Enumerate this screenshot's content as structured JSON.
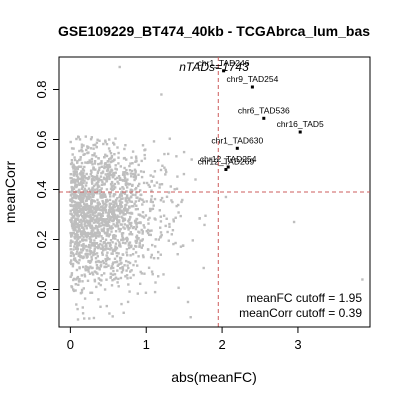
{
  "chart_data": {
    "type": "scatter",
    "title": "GSE109229_BT474_40kb - TCGAbrca_lum_bas",
    "xlabel": "abs(meanFC)",
    "ylabel": "meanCorr",
    "xlim": [
      -0.15,
      3.95
    ],
    "ylim": [
      -0.15,
      0.93
    ],
    "x_ticks": [
      0,
      1,
      2,
      3
    ],
    "x_tick_labels": [
      "0",
      "1",
      "2",
      "3"
    ],
    "y_ticks": [
      0.0,
      0.2,
      0.4,
      0.6,
      0.8
    ],
    "y_tick_labels": [
      "0.0",
      "0.2",
      "0.4",
      "0.6",
      "0.8"
    ],
    "ntads_label": "nTADs=1743",
    "ntads_value": 1743,
    "cutoffs": {
      "meanFC": 1.95,
      "meanCorr": 0.39
    },
    "cutoff_text_fc": "meanFC cutoff = 1.95",
    "cutoff_text_corr": "meanCorr cutoff = 0.39",
    "colors": {
      "background_points": "#bebebe",
      "highlight_points": "#000000",
      "cutoff_lines": "#cd5c5c"
    },
    "highlighted": [
      {
        "label": "chr1_TAD246",
        "x": 2.02,
        "y": 0.875
      },
      {
        "label": "chr9_TAD254",
        "x": 2.4,
        "y": 0.81
      },
      {
        "label": "chr6_TAD536",
        "x": 2.55,
        "y": 0.685
      },
      {
        "label": "chr16_TAD5",
        "x": 3.03,
        "y": 0.63
      },
      {
        "label": "chr1_TAD630",
        "x": 2.2,
        "y": 0.565
      },
      {
        "label": "chr12_TAD254",
        "x": 2.08,
        "y": 0.49
      },
      {
        "label": "chr12_TAD269",
        "x": 2.05,
        "y": 0.48
      }
    ],
    "outliers": [
      {
        "x": 3.85,
        "y": 0.04
      },
      {
        "x": 2.95,
        "y": 0.27
      },
      {
        "x": 2.05,
        "y": 0.37
      },
      {
        "x": 1.65,
        "y": 0.44
      },
      {
        "x": 0.65,
        "y": 0.89
      },
      {
        "x": 0.1,
        "y": -0.12
      },
      {
        "x": 1.55,
        "y": -0.05
      },
      {
        "x": 1.6,
        "y": 0.52
      },
      {
        "x": 1.2,
        "y": 0.78
      }
    ],
    "background_point_count": 1734
  }
}
